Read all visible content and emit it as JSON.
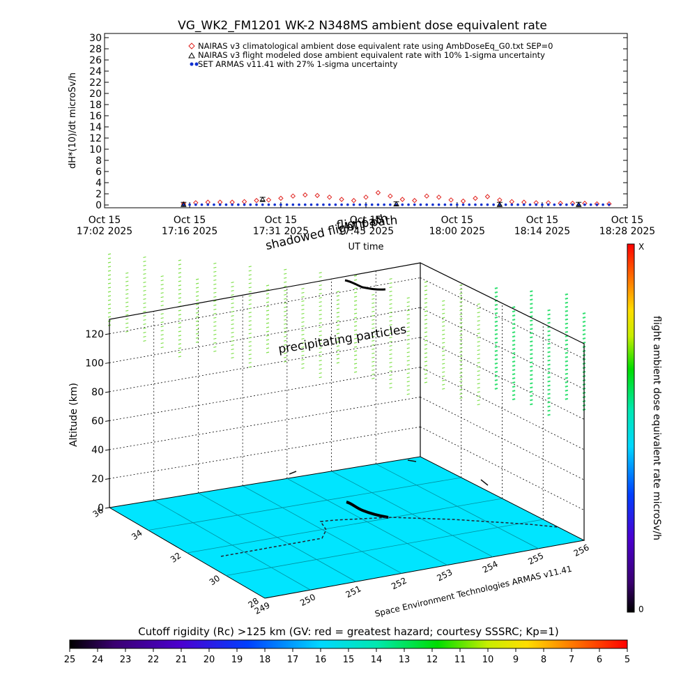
{
  "header": {
    "title": "VG_WK2_FM1201    WK-2 N348MS ambient dose equivalent rate"
  },
  "top_panel": {
    "ylabel": "dH*(10)/dt microSv/h",
    "xlabel": "UT time",
    "legend": [
      "NAIRAS v3 climatological ambient dose equivalent rate using AmbDoseEq_G0.txt SEP=0",
      "NAIRAS v3 flight modeled dose ambient equivalent rate with 10% 1-sigma uncertainty",
      "SET ARMAS v11.41 with 27% 1-sigma uncertainty"
    ],
    "overlay_labels": [
      "flight path",
      "shadowed flight path"
    ]
  },
  "three_d": {
    "zlabel": "Altitude (km)",
    "annotation": "precipitating particles",
    "credit": "Space Environment Technologies ARMAS v11.41",
    "z_ticks": [
      "0",
      "20",
      "40",
      "60",
      "80",
      "100",
      "120"
    ],
    "lon_ticks": [
      "249",
      "250",
      "251",
      "252",
      "253",
      "254",
      "255",
      "256"
    ],
    "lat_ticks": [
      "28",
      "30",
      "32",
      "34",
      "36"
    ]
  },
  "right_colorbar": {
    "label": "flight ambient dose equivalent rate microSv/h",
    "top_label": "X",
    "bottom_label": "0"
  },
  "bottom_colorbar": {
    "title": "Cutoff rigidity (Rc) >125 km (GV: red = greatest hazard; courtesy SSSRC; Kp=1)",
    "ticks": [
      "25",
      "24",
      "23",
      "22",
      "21",
      "20",
      "19",
      "18",
      "17",
      "16",
      "15",
      "14",
      "13",
      "12",
      "11",
      "10",
      "9",
      "8",
      "7",
      "6",
      "5"
    ]
  },
  "colors": {
    "nairas_climatological": "#e0201c",
    "nairas_flight": "#000000",
    "armas": "#1030d0",
    "ground": "#00e5ff",
    "particles": "#7fe04a"
  },
  "chart_data": [
    {
      "type": "line",
      "title": "VG_WK2_FM1201    WK-2 N348MS ambient dose equivalent rate",
      "xlabel": "UT time",
      "ylabel": "dH*(10)/dt microSv/h",
      "ylim": [
        0,
        30
      ],
      "y_ticks": [
        0,
        2,
        4,
        6,
        8,
        10,
        12,
        14,
        16,
        18,
        20,
        22,
        24,
        26,
        28,
        30
      ],
      "x_tick_labels": [
        [
          "Oct 15",
          "17:02 2025"
        ],
        [
          "Oct 15",
          "17:16 2025"
        ],
        [
          "Oct 15",
          "17:31 2025"
        ],
        [
          "Oct 15",
          "17:45 2025"
        ],
        [
          "Oct 15",
          "18:00 2025"
        ],
        [
          "Oct 15",
          "18:14 2025"
        ],
        [
          "Oct 15",
          "18:28 2025"
        ]
      ],
      "x_range_minutes_after_1702": [
        0,
        86
      ],
      "series": [
        {
          "name": "NAIRAS v3 climatological ambient dose equivalent rate using AmbDoseEq_G0.txt SEP=0",
          "marker": "diamond",
          "x_minutes": [
            13,
            15,
            17,
            19,
            21,
            23,
            25,
            27,
            29,
            31,
            33,
            35,
            37,
            39,
            41,
            43,
            45,
            47,
            49,
            51,
            53,
            55,
            57,
            59,
            61,
            63,
            65,
            67,
            69,
            71,
            73,
            75,
            77,
            79,
            81,
            83
          ],
          "values": [
            0.2,
            0.4,
            0.5,
            0.5,
            0.5,
            0.6,
            0.8,
            0.9,
            1.2,
            1.6,
            1.8,
            1.7,
            1.4,
            1.0,
            0.8,
            1.4,
            2.2,
            1.6,
            1.0,
            0.8,
            1.6,
            1.4,
            0.9,
            0.7,
            1.2,
            1.5,
            0.9,
            0.6,
            0.5,
            0.4,
            0.4,
            0.3,
            0.3,
            0.3,
            0.2,
            0.2
          ]
        },
        {
          "name": "NAIRAS v3 flight modeled dose ambient equivalent rate with 10% 1-sigma uncertainty",
          "marker": "triangle",
          "x_minutes": [
            13,
            26,
            48,
            65,
            78
          ],
          "values": [
            0.1,
            1.0,
            0.2,
            0.1,
            0.1
          ]
        },
        {
          "name": "SET ARMAS v11.41 with 27% 1-sigma uncertainty",
          "marker": "circle",
          "x_minutes": [
            13,
            16,
            19,
            22,
            25,
            28,
            31,
            34,
            37,
            40,
            43,
            46,
            49,
            52,
            55,
            58,
            61,
            64,
            67,
            70,
            73,
            76,
            79,
            82
          ],
          "values": [
            0.1,
            0.1,
            0.1,
            0.1,
            0.1,
            0.1,
            0.1,
            0.1,
            0.1,
            0.1,
            0.1,
            0.1,
            0.1,
            0.1,
            0.1,
            0.1,
            0.1,
            0.1,
            0.1,
            0.1,
            0.1,
            0.1,
            0.1,
            0.1
          ]
        }
      ]
    },
    {
      "type": "scatter",
      "title": "",
      "zlabel": "Altitude (km)",
      "zlim": [
        0,
        130
      ],
      "lon_range": [
        249,
        256
      ],
      "lat_range": [
        28,
        36
      ]
    },
    {
      "type": "heatmap",
      "title": "Cutoff rigidity (Rc) >125 km (GV: red = greatest hazard; courtesy SSSRC; Kp=1)",
      "range": [
        25,
        5
      ]
    }
  ]
}
